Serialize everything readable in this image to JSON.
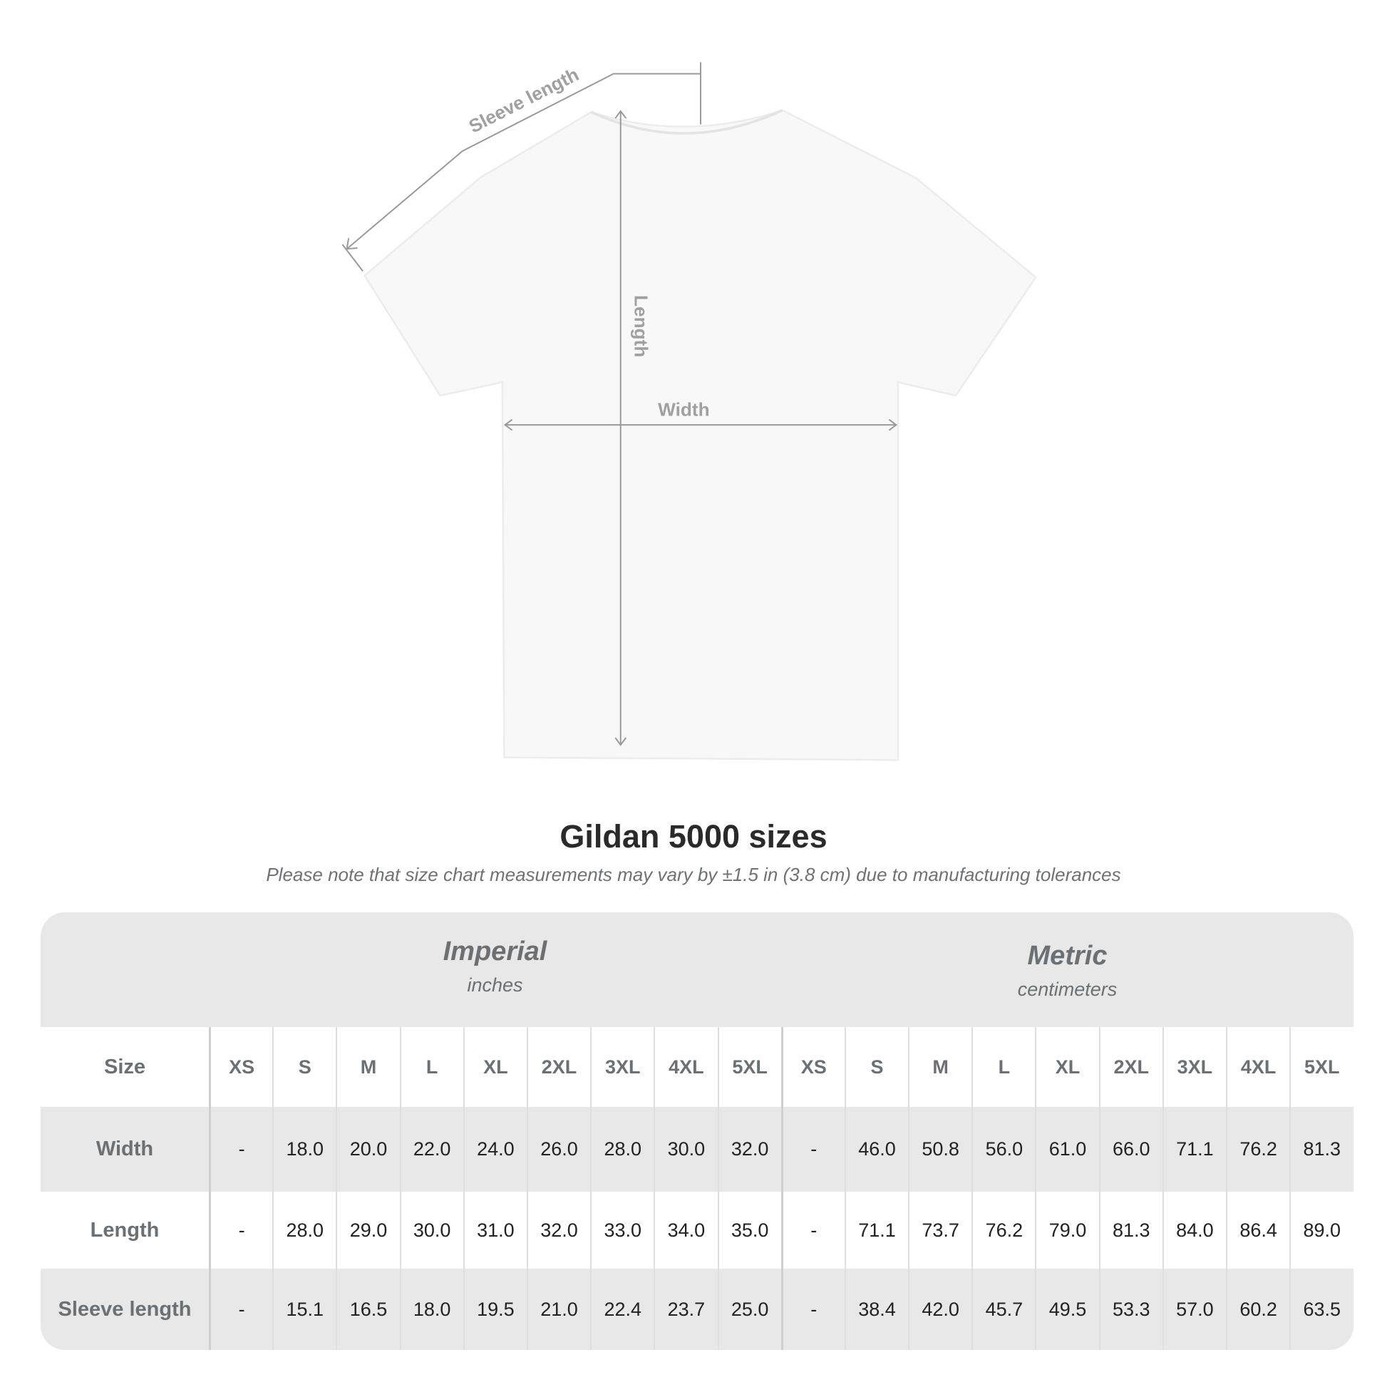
{
  "diagram": {
    "labels": {
      "sleeve": "Sleeve length",
      "length": "Length",
      "width": "Width"
    }
  },
  "title": "Gildan 5000 sizes",
  "note": "Please note that size chart measurements may vary by ±1.5 in (3.8 cm) due to manufacturing tolerances",
  "table": {
    "imperial": {
      "heading": "Imperial",
      "unit": "inches"
    },
    "metric": {
      "heading": "Metric",
      "unit": "centimeters"
    },
    "size_label": "Size",
    "sizes": [
      "XS",
      "S",
      "M",
      "L",
      "XL",
      "2XL",
      "3XL",
      "4XL",
      "5XL"
    ],
    "rows": [
      {
        "label": "Width",
        "imperial": [
          "-",
          "18.0",
          "20.0",
          "22.0",
          "24.0",
          "26.0",
          "28.0",
          "30.0",
          "32.0"
        ],
        "metric": [
          "-",
          "46.0",
          "50.8",
          "56.0",
          "61.0",
          "66.0",
          "71.1",
          "76.2",
          "81.3"
        ]
      },
      {
        "label": "Length",
        "imperial": [
          "-",
          "28.0",
          "29.0",
          "30.0",
          "31.0",
          "32.0",
          "33.0",
          "34.0",
          "35.0"
        ],
        "metric": [
          "-",
          "71.1",
          "73.7",
          "76.2",
          "79.0",
          "81.3",
          "84.0",
          "86.4",
          "89.0"
        ]
      },
      {
        "label": "Sleeve length",
        "imperial": [
          "-",
          "15.1",
          "16.5",
          "18.0",
          "19.5",
          "21.0",
          "22.4",
          "23.7",
          "25.0"
        ],
        "metric": [
          "-",
          "38.4",
          "42.0",
          "45.7",
          "49.5",
          "53.3",
          "57.0",
          "60.2",
          "63.5"
        ]
      }
    ]
  },
  "colors": {
    "band": "#e8e8e8",
    "heading_text": "#6a7073",
    "value_text": "#222222",
    "annotation": "#999999"
  }
}
